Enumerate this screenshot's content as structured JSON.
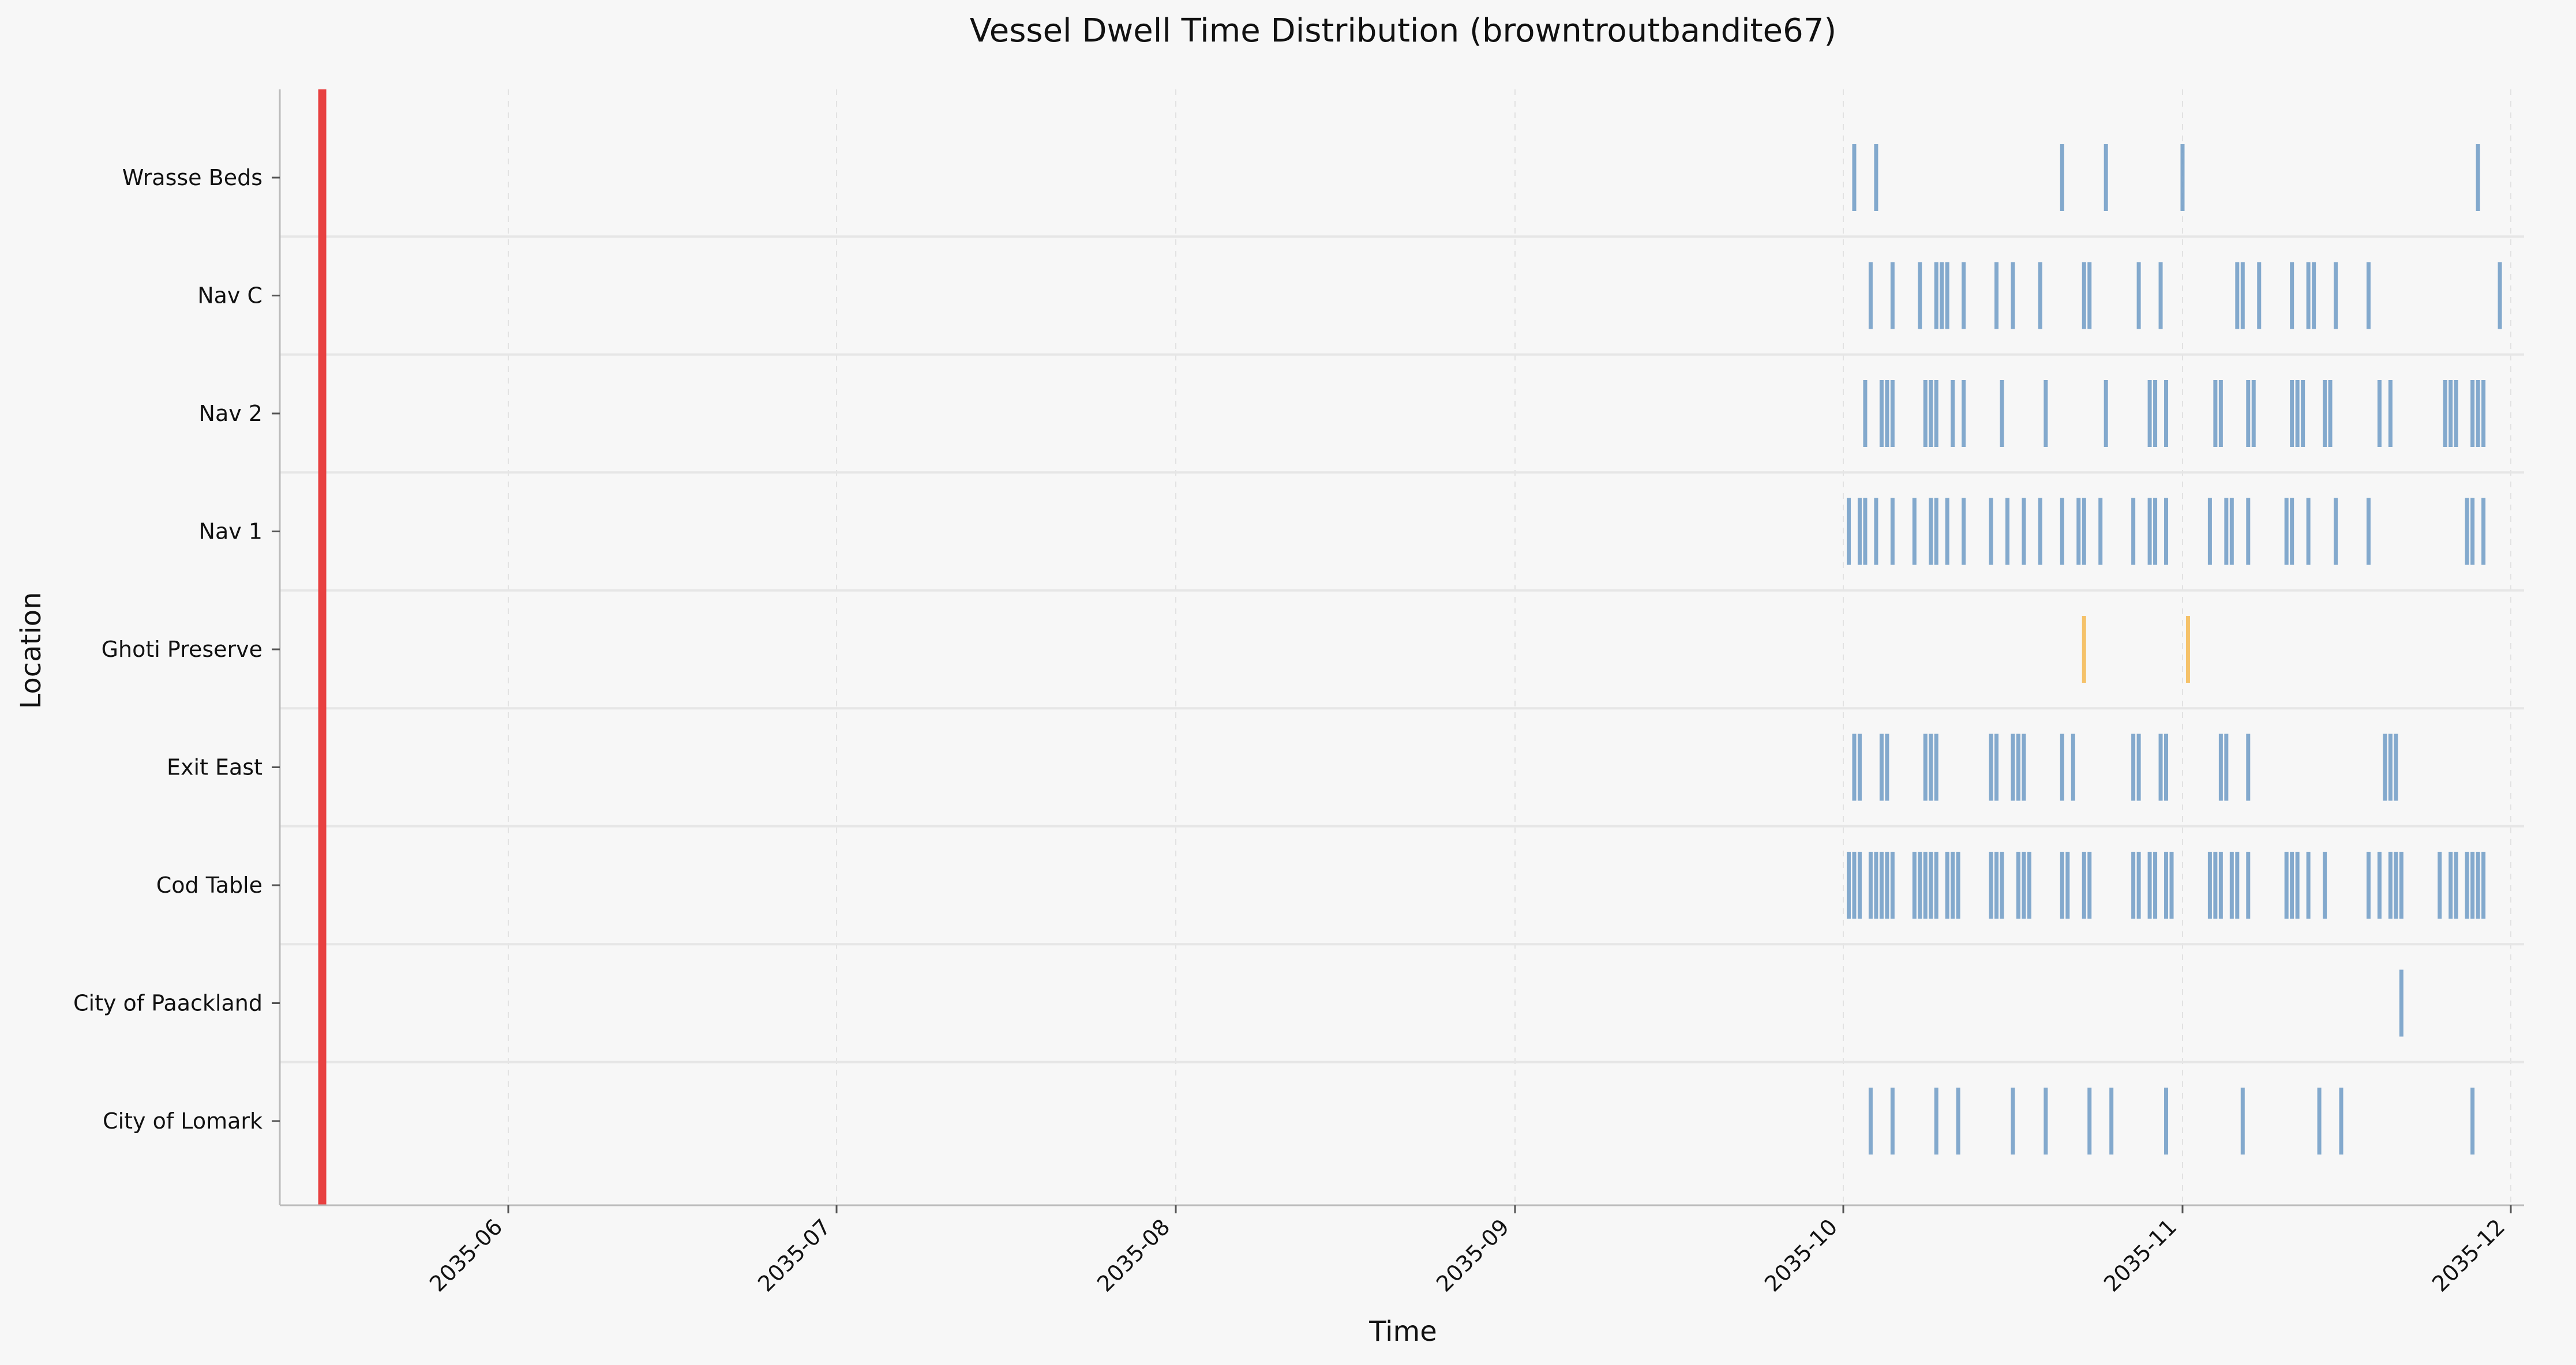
{
  "chart_data": {
    "type": "event-timeline",
    "title": "Vessel Dwell Time Distribution (browntroutbandite67)",
    "xlabel": "Time",
    "ylabel": "Location",
    "xlim": [
      "2035-05-13",
      "2035-12-01"
    ],
    "x_ticks": [
      "2035-06",
      "2035-07",
      "2035-08",
      "2035-09",
      "2035-10",
      "2035-11",
      "2035-12"
    ],
    "x_tick_dates": [
      "2035-06-01",
      "2035-07-01",
      "2035-08-01",
      "2035-09-01",
      "2035-10-01",
      "2035-11-01",
      "2035-12-01"
    ],
    "marker_line_date": "2035-05-15",
    "categories": [
      "Wrasse Beds",
      "Nav C",
      "Nav 2",
      "Nav 1",
      "Ghoti Preserve",
      "Exit East",
      "Cod Table",
      "City of Paackland",
      "City of Lomark"
    ],
    "series": [
      {
        "name": "Wrasse Beds",
        "color": "#6e9bc5",
        "events": [
          "2035-10-02",
          "2035-10-04",
          "2035-10-21",
          "2035-10-25",
          "2035-11-01",
          "2035-11-28"
        ]
      },
      {
        "name": "Nav C",
        "color": "#6e9bc5",
        "events": [
          "2035-10-03.5",
          "2035-10-05.5",
          "2035-10-08",
          "2035-10-09.5",
          "2035-10-10",
          "2035-10-10.5",
          "2035-10-12",
          "2035-10-15",
          "2035-10-16.5",
          "2035-10-19",
          "2035-10-23",
          "2035-10-23.5",
          "2035-10-28",
          "2035-10-30",
          "2035-11-06",
          "2035-11-06.5",
          "2035-11-08",
          "2035-11-11",
          "2035-11-12.5",
          "2035-11-13",
          "2035-11-15",
          "2035-11-18",
          "2035-11-30"
        ]
      },
      {
        "name": "Nav 2",
        "color": "#6e9bc5",
        "events": [
          "2035-10-03",
          "2035-10-04.5",
          "2035-10-05",
          "2035-10-05.5",
          "2035-10-08.5",
          "2035-10-09",
          "2035-10-09.5",
          "2035-10-11",
          "2035-10-12",
          "2035-10-15.5",
          "2035-10-19.5",
          "2035-10-25",
          "2035-10-29",
          "2035-10-29.5",
          "2035-10-30.5",
          "2035-11-04",
          "2035-11-04.5",
          "2035-11-07",
          "2035-11-07.5",
          "2035-11-11",
          "2035-11-11.5",
          "2035-11-12",
          "2035-11-14",
          "2035-11-14.5",
          "2035-11-19",
          "2035-11-20",
          "2035-11-25",
          "2035-11-25.5",
          "2035-11-26",
          "2035-11-27.5",
          "2035-11-28",
          "2035-11-28.5"
        ]
      },
      {
        "name": "Nav 1",
        "color": "#6e9bc5",
        "events": [
          "2035-10-01.5",
          "2035-10-02.5",
          "2035-10-03",
          "2035-10-04",
          "2035-10-05.5",
          "2035-10-07.5",
          "2035-10-09",
          "2035-10-09.5",
          "2035-10-10.5",
          "2035-10-12",
          "2035-10-14.5",
          "2035-10-16",
          "2035-10-17.5",
          "2035-10-19",
          "2035-10-21",
          "2035-10-22.5",
          "2035-10-23",
          "2035-10-24.5",
          "2035-10-27.5",
          "2035-10-29",
          "2035-10-29.5",
          "2035-10-30.5",
          "2035-11-03.5",
          "2035-11-05",
          "2035-11-05.5",
          "2035-11-07",
          "2035-11-10.5",
          "2035-11-11",
          "2035-11-12.5",
          "2035-11-15",
          "2035-11-18",
          "2035-11-27",
          "2035-11-27.5",
          "2035-11-28.5"
        ]
      },
      {
        "name": "Ghoti Preserve",
        "color": "#f5b851",
        "events": [
          "2035-10-23",
          "2035-11-01.5"
        ]
      },
      {
        "name": "Exit East",
        "color": "#6e9bc5",
        "events": [
          "2035-10-02",
          "2035-10-02.5",
          "2035-10-04.5",
          "2035-10-05",
          "2035-10-08.5",
          "2035-10-09",
          "2035-10-09.5",
          "2035-10-14.5",
          "2035-10-15",
          "2035-10-16.5",
          "2035-10-17",
          "2035-10-17.5",
          "2035-10-21",
          "2035-10-22",
          "2035-10-27.5",
          "2035-10-28",
          "2035-10-30",
          "2035-10-30.5",
          "2035-11-04.5",
          "2035-11-05",
          "2035-11-07",
          "2035-11-19.5",
          "2035-11-20",
          "2035-11-20.5"
        ]
      },
      {
        "name": "Cod Table",
        "color": "#6e9bc5",
        "events": [
          "2035-10-01.5",
          "2035-10-02",
          "2035-10-02.5",
          "2035-10-03.5",
          "2035-10-04",
          "2035-10-04.5",
          "2035-10-05",
          "2035-10-05.5",
          "2035-10-07.5",
          "2035-10-08",
          "2035-10-08.5",
          "2035-10-09",
          "2035-10-09.5",
          "2035-10-10.5",
          "2035-10-11",
          "2035-10-11.5",
          "2035-10-14.5",
          "2035-10-15",
          "2035-10-15.5",
          "2035-10-17",
          "2035-10-17.5",
          "2035-10-18",
          "2035-10-21",
          "2035-10-21.5",
          "2035-10-23",
          "2035-10-23.5",
          "2035-10-27.5",
          "2035-10-28",
          "2035-10-29",
          "2035-10-29.5",
          "2035-10-30.5",
          "2035-10-31",
          "2035-11-03.5",
          "2035-11-04",
          "2035-11-04.5",
          "2035-11-05.5",
          "2035-11-06",
          "2035-11-07",
          "2035-11-10.5",
          "2035-11-11",
          "2035-11-11.5",
          "2035-11-12.5",
          "2035-11-14",
          "2035-11-18",
          "2035-11-19",
          "2035-11-20",
          "2035-11-20.5",
          "2035-11-21",
          "2035-11-24.5",
          "2035-11-25.5",
          "2035-11-26",
          "2035-11-27",
          "2035-11-27.5",
          "2035-11-28",
          "2035-11-28.5"
        ]
      },
      {
        "name": "City of Paackland",
        "color": "#6e9bc5",
        "events": [
          "2035-11-21"
        ]
      },
      {
        "name": "City of Lomark",
        "color": "#6e9bc5",
        "events": [
          "2035-10-03.5",
          "2035-10-05.5",
          "2035-10-09.5",
          "2035-10-11.5",
          "2035-10-16.5",
          "2035-10-19.5",
          "2035-10-23.5",
          "2035-10-25.5",
          "2035-10-30.5",
          "2035-11-06.5",
          "2035-11-13.5",
          "2035-11-15.5",
          "2035-11-27.5"
        ]
      }
    ],
    "grid": true
  },
  "colors": {
    "marker_line": "#e84040",
    "event_blue": "#6e9bc5",
    "event_orange": "#f5b851",
    "background": "#f7f7f7"
  }
}
